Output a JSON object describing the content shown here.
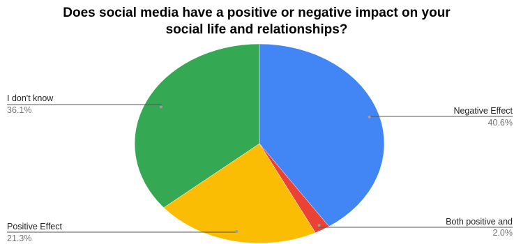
{
  "chart_data": {
    "type": "pie",
    "title_lines": [
      "Does social media have a positive or negative impact on your",
      "social life and relationships?"
    ],
    "start_angle_deg": 0,
    "direction": "clockwise",
    "slices": [
      {
        "label": "Negative Effect",
        "value": 40.6,
        "display": "40.6%",
        "color": "#4285F4",
        "label_side": "right"
      },
      {
        "label": "Both positive and",
        "value": 2.0,
        "display": "2.0%",
        "color": "#EA4335",
        "label_side": "right"
      },
      {
        "label": "Positive Effect",
        "value": 21.3,
        "display": "21.3%",
        "color": "#FBBC04",
        "label_side": "left"
      },
      {
        "label": "I don't know",
        "value": 36.1,
        "display": "36.1%",
        "color": "#34A853",
        "label_side": "left"
      }
    ],
    "legend": "none"
  }
}
